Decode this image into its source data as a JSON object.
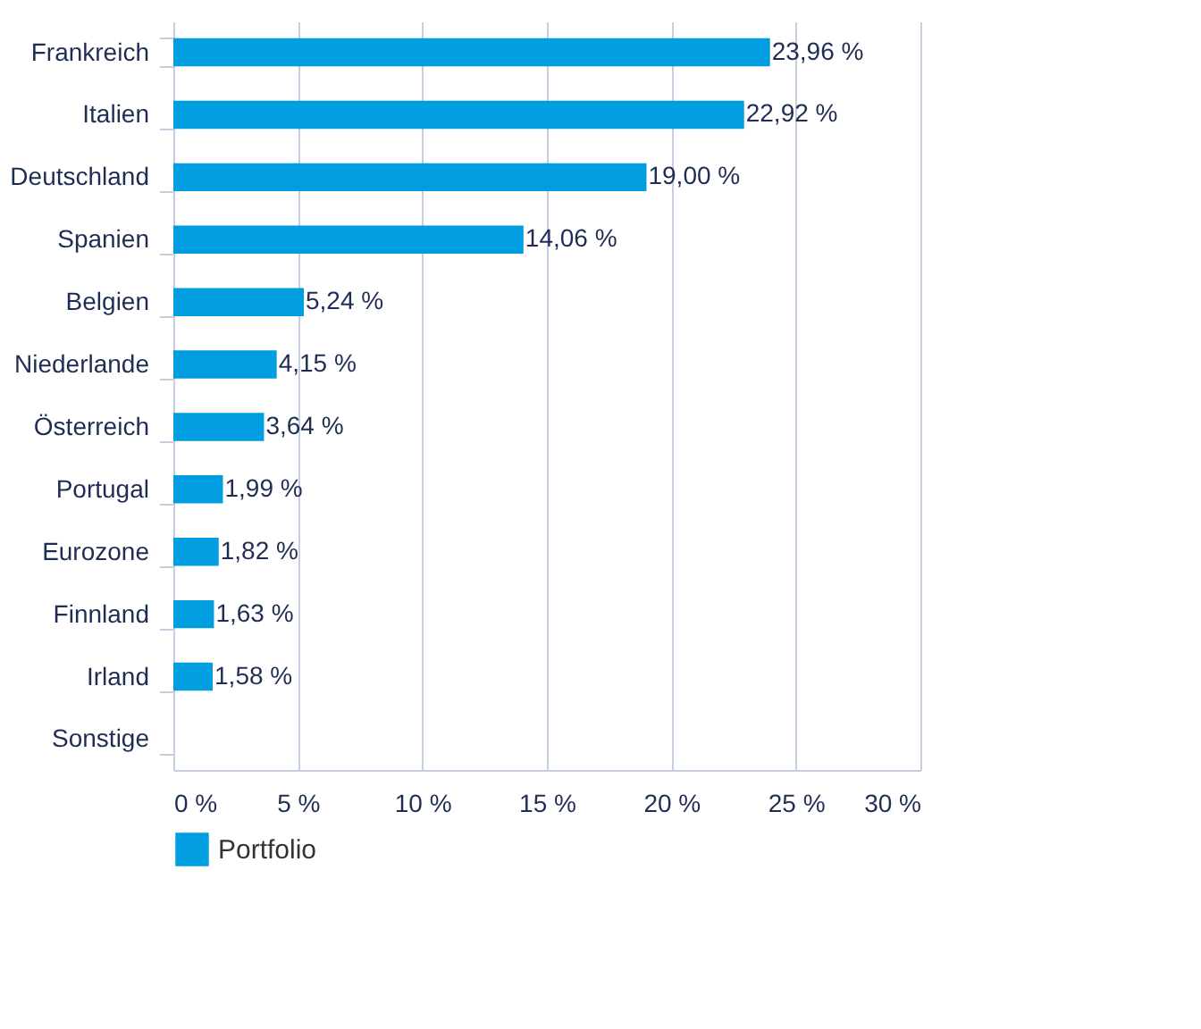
{
  "chart_data": {
    "type": "bar",
    "orientation": "horizontal",
    "categories": [
      "Frankreich",
      "Italien",
      "Deutschland",
      "Spanien",
      "Belgien",
      "Niederlande",
      "Österreich",
      "Portugal",
      "Eurozone",
      "Finnland",
      "Irland",
      "Sonstige"
    ],
    "series": [
      {
        "name": "Portfolio",
        "color": "#009ee0",
        "values": [
          23.96,
          22.92,
          19.0,
          14.06,
          5.24,
          4.15,
          3.64,
          1.99,
          1.82,
          1.63,
          1.58,
          null
        ],
        "value_labels": [
          "23,96 %",
          "22,92 %",
          "19,00 %",
          "14,06 %",
          "5,24 %",
          "4,15 %",
          "3,64 %",
          "1,99 %",
          "1,82 %",
          "1,63 %",
          "1,58 %",
          null
        ]
      }
    ],
    "xlim": [
      0,
      30
    ],
    "xticks": [
      {
        "value": 0,
        "label": "0 %"
      },
      {
        "value": 5,
        "label": "5 %"
      },
      {
        "value": 10,
        "label": "10 %"
      },
      {
        "value": 15,
        "label": "15 %"
      },
      {
        "value": 20,
        "label": "20 %"
      },
      {
        "value": 25,
        "label": "25 %"
      },
      {
        "value": 30,
        "label": "30 %"
      }
    ],
    "grid": "x",
    "legend": "bottom"
  }
}
